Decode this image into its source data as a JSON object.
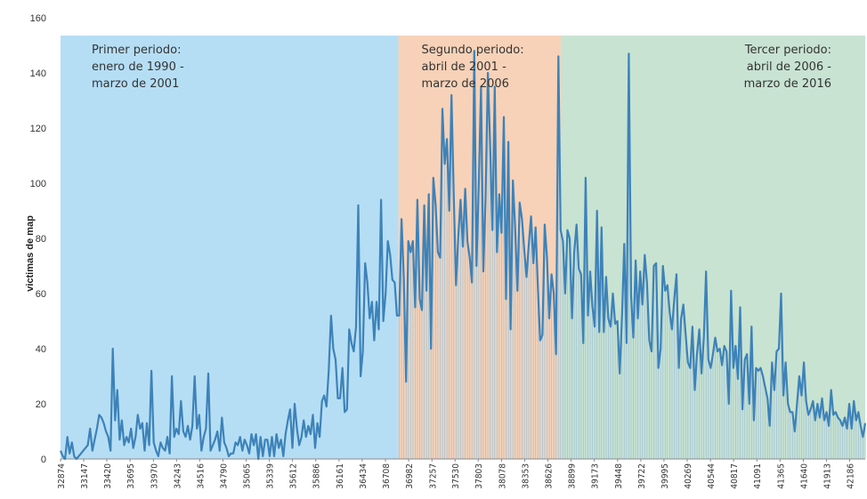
{
  "chart_data": {
    "type": "line",
    "ylabel": "victimas de map",
    "ylim": [
      0,
      160
    ],
    "yticks": [
      0,
      20,
      40,
      60,
      80,
      100,
      120,
      140,
      160
    ],
    "xlim": [
      32874,
      42370
    ],
    "xticks": [
      32874,
      33147,
      33420,
      33695,
      33970,
      34243,
      34516,
      34790,
      35065,
      35339,
      35612,
      35886,
      36161,
      36434,
      36708,
      36982,
      37257,
      37530,
      37803,
      38078,
      38353,
      38626,
      38899,
      39173,
      39448,
      39722,
      39995,
      40269,
      40544,
      40817,
      41091,
      41365,
      41640,
      41913,
      42186
    ],
    "grid": false,
    "regions": [
      {
        "x0": 32874,
        "x1": 36861,
        "color": "#b5def5",
        "label_lines": [
          "Primer periodo:",
          "enero de 1990 -",
          "marzo de 2001"
        ],
        "label_pos": "top-left"
      },
      {
        "x0": 36861,
        "x1": 38777,
        "color": "#f7d2b8",
        "label_lines": [
          "Segundo periodo:",
          "abril de 2001 -",
          "marzo de 2006"
        ],
        "label_pos": "top-left"
      },
      {
        "x0": 38777,
        "x1": 42370,
        "color": "#c8e3d2",
        "label_lines": [
          "Tercer  periodo:",
          "abril de 2006 -",
          "marzo de 2016"
        ],
        "label_pos": "top-right"
      }
    ],
    "line_color": "#3d82b8",
    "drop_line_color": "#a3c4d6",
    "monthly_start": 32874,
    "values": [
      3,
      1,
      0,
      8,
      2,
      6,
      1,
      0,
      1,
      2,
      3,
      4,
      5,
      11,
      3,
      7,
      11,
      16,
      15,
      13,
      10,
      8,
      3,
      40,
      14,
      25,
      7,
      14,
      5,
      8,
      6,
      11,
      4,
      8,
      16,
      11,
      13,
      3,
      13,
      5,
      32,
      6,
      3,
      1,
      6,
      4,
      3,
      8,
      2,
      30,
      8,
      11,
      9,
      21,
      10,
      8,
      12,
      7,
      12,
      30,
      11,
      16,
      3,
      8,
      11,
      31,
      3,
      5,
      7,
      10,
      3,
      15,
      6,
      4,
      1,
      2,
      2,
      6,
      5,
      8,
      3,
      7,
      5,
      2,
      9,
      5,
      9,
      0,
      8,
      1,
      7,
      7,
      1,
      8,
      1,
      9,
      4,
      7,
      1,
      9,
      14,
      18,
      4,
      20,
      11,
      5,
      8,
      14,
      8,
      12,
      9,
      16,
      4,
      13,
      8,
      21,
      23,
      19,
      32,
      52,
      40,
      36,
      22,
      22,
      33,
      17,
      18,
      47,
      42,
      39,
      48,
      92,
      30,
      39,
      71,
      64,
      51,
      57,
      43,
      57,
      47,
      94,
      50,
      60,
      79,
      74,
      65,
      64,
      52,
      52,
      87,
      66,
      28,
      79,
      75,
      79,
      55,
      94,
      58,
      54,
      92,
      61,
      96,
      40,
      102,
      92,
      75,
      73,
      127,
      107,
      116,
      90,
      132,
      95,
      63,
      81,
      94,
      77,
      98,
      79,
      73,
      64,
      148,
      70,
      100,
      135,
      68,
      95,
      140,
      114,
      83,
      135,
      75,
      96,
      82,
      124,
      58,
      115,
      47,
      101,
      84,
      61,
      93,
      87,
      76,
      66,
      78,
      88,
      71,
      84,
      62,
      43,
      45,
      85,
      73,
      51,
      67,
      60,
      38,
      146,
      83,
      79,
      60,
      83,
      80,
      51,
      75,
      85,
      69,
      67,
      42,
      102,
      52,
      68,
      55,
      48,
      90,
      46,
      84,
      46,
      66,
      51,
      48,
      60,
      49,
      50,
      31,
      52,
      78,
      42,
      147,
      59,
      44,
      72,
      51,
      68,
      56,
      74,
      64,
      43,
      39,
      70,
      71,
      33,
      40,
      70,
      61,
      63,
      53,
      47,
      58,
      67,
      33,
      51,
      56,
      45,
      35,
      33,
      48,
      25,
      38,
      47,
      31,
      44,
      68,
      36,
      33,
      38,
      44,
      39,
      40,
      34,
      41,
      39,
      20,
      61,
      33,
      41,
      29,
      55,
      18,
      36,
      38,
      20,
      48,
      14,
      33,
      32,
      33,
      30,
      26,
      22,
      12,
      35,
      25,
      39,
      40,
      60,
      23,
      35,
      20,
      17,
      17,
      10,
      20,
      30,
      23,
      35,
      21,
      16,
      18,
      21,
      14,
      20,
      15,
      22,
      14,
      17,
      12,
      25,
      16,
      17,
      15,
      14,
      12,
      15,
      11,
      20,
      11,
      21,
      14,
      17,
      12,
      8,
      13
    ]
  }
}
